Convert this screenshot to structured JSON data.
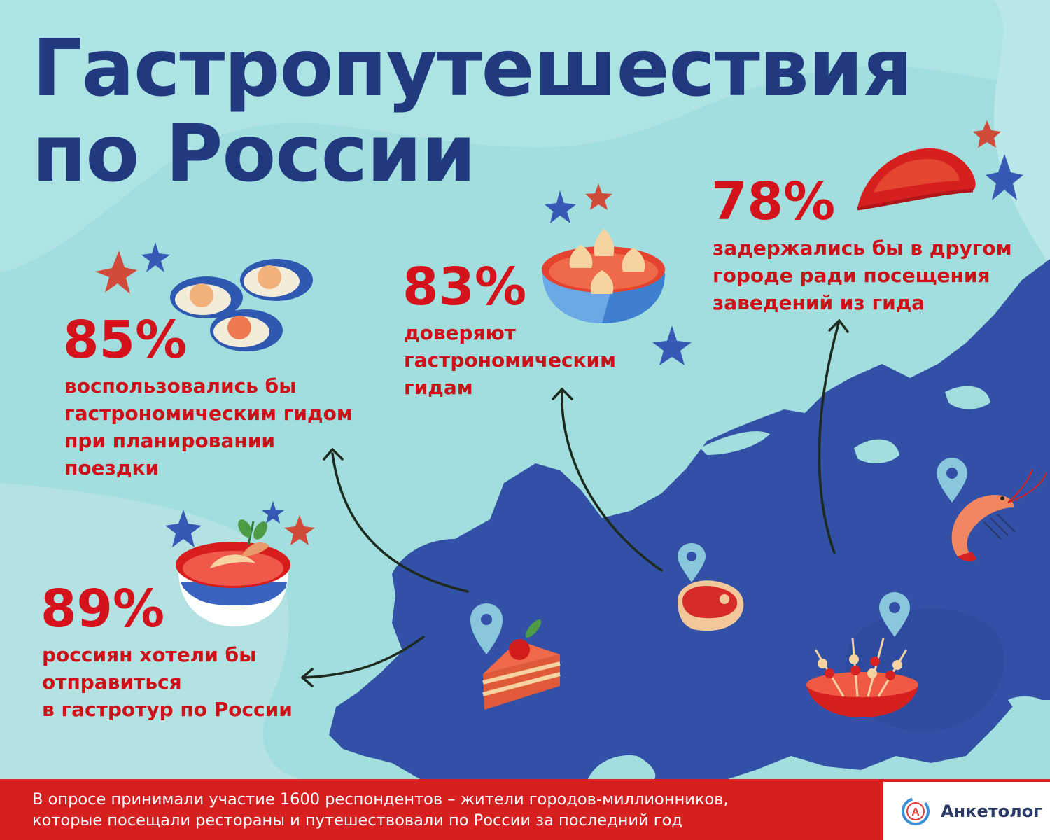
{
  "title": {
    "line1": "Гастропутешествия",
    "line2": "по России"
  },
  "stats": [
    {
      "value": "85%",
      "text": [
        "воспользовались бы",
        "гастрономическим гидом",
        "при планировании",
        "поездки"
      ]
    },
    {
      "value": "83%",
      "text": [
        "доверяют",
        "гастрономическим",
        "гидам"
      ]
    },
    {
      "value": "78%",
      "text": [
        "задержались бы в другом",
        "городе ради посещения",
        "заведений из гида"
      ]
    },
    {
      "value": "89%",
      "text": [
        "россиян хотели бы",
        "отправиться",
        "в гастротур по России"
      ]
    }
  ],
  "footer": {
    "line1": "В опросе принимали участие 1600 респондентов – жители городов-миллионников,",
    "line2": "которые посещали рестораны и путешествовали по России за последний год"
  },
  "logo": {
    "text": "Анкетолог",
    "letter": "A"
  },
  "icons": [
    "oysters-icon",
    "dumplings-icon",
    "pastry-icon",
    "soup-bowl-icon",
    "cake-icon",
    "steak-icon",
    "shrimp-icon",
    "skewers-icon",
    "location-pin-icon",
    "star-icon",
    "arrow-icon"
  ],
  "colors": {
    "background": "#a3dedf",
    "map": "#3150a6",
    "title": "#20397f",
    "accent_red": "#d3121b",
    "footer": "#d81f1f"
  }
}
